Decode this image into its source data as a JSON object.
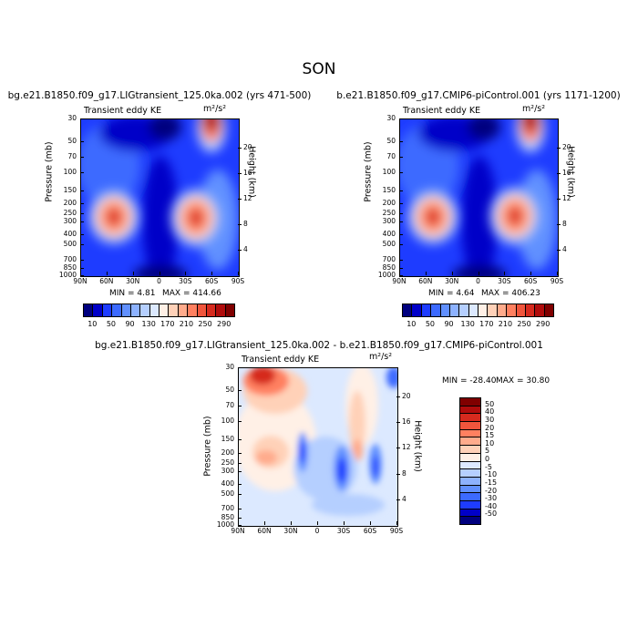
{
  "season": "SON",
  "panels": [
    {
      "title": "bg.e21.B1850.f09_g17.LIGtransient_125.0ka.002 (yrs 471-500)",
      "subtitle": "Transient eddy KE",
      "units": "m²/s²",
      "ylabel": "Pressure (mb)",
      "ylabel_right": "Height (km)",
      "min_label": "MIN =   4.81",
      "max_label": "MAX = 414.66"
    },
    {
      "title": "b.e21.B1850.f09_g17.CMIP6-piControl.001 (yrs 1171-1200)",
      "subtitle": "Transient eddy KE",
      "units": "m²/s²",
      "ylabel": "Pressure (mb)",
      "ylabel_right": "Height (km)",
      "min_label": "MIN =   4.64",
      "max_label": "MAX = 406.23"
    },
    {
      "title": "bg.e21.B1850.f09_g17.LIGtransient_125.0ka.002 - b.e21.B1850.f09_g17.CMIP6-piControl.001",
      "subtitle": "Transient eddy KE",
      "units": "m²/s²",
      "ylabel": "Pressure (mb)",
      "ylabel_right": "Height (km)",
      "min_label": "MIN = -28.40",
      "max_label": "MAX =  30.80"
    }
  ],
  "chart_data": [
    {
      "type": "heatmap",
      "title": "bg.e21.B1850.f09_g17.LIGtransient_125.0ka.002 (yrs 471-500)",
      "x_ticks": [
        "90N",
        "60N",
        "30N",
        "0",
        "30S",
        "60S",
        "90S"
      ],
      "x_values": [
        90,
        60,
        30,
        0,
        -30,
        -60,
        -90
      ],
      "y_ticks": [
        "30",
        "50",
        "70",
        "100",
        "150",
        "200",
        "250",
        "300",
        "400",
        "500",
        "700",
        "850",
        "1000"
      ],
      "y_values": [
        30,
        50,
        70,
        100,
        150,
        200,
        250,
        300,
        400,
        500,
        700,
        850,
        1000
      ],
      "yscale": "log",
      "ylim": [
        1000,
        30
      ],
      "height_ticks": [
        "4",
        "8",
        "12",
        "16",
        "20"
      ],
      "height_values": [
        4,
        8,
        12,
        16,
        20
      ],
      "colorbar_levels": [
        "10",
        "50",
        "90",
        "130",
        "170",
        "210",
        "250",
        "290"
      ],
      "colorbar_colors": [
        "#00007f",
        "#0000c8",
        "#1e3cff",
        "#3c6aff",
        "#6190ff",
        "#8db2ff",
        "#b5cfff",
        "#dce9ff",
        "#fff0e6",
        "#ffd1b8",
        "#ffab8c",
        "#ff8060",
        "#f0553c",
        "#d62a1e",
        "#b00c0c",
        "#800000"
      ],
      "min": 4.81,
      "max": 414.66,
      "features": [
        {
          "name": "NH jet maximum",
          "lat": 45,
          "p": 270,
          "value": 290
        },
        {
          "name": "SH jet maximum",
          "lat": -48,
          "p": 280,
          "value": 280
        },
        {
          "name": "SH stratospheric maximum",
          "lat": -62,
          "p": 30,
          "value": 414.66
        }
      ]
    },
    {
      "type": "heatmap",
      "title": "b.e21.B1850.f09_g17.CMIP6-piControl.001 (yrs 1171-1200)",
      "x_ticks": [
        "90N",
        "60N",
        "30N",
        "0",
        "30S",
        "60S",
        "90S"
      ],
      "x_values": [
        90,
        60,
        30,
        0,
        -30,
        -60,
        -90
      ],
      "y_ticks": [
        "30",
        "50",
        "70",
        "100",
        "150",
        "200",
        "250",
        "300",
        "400",
        "500",
        "700",
        "850",
        "1000"
      ],
      "y_values": [
        30,
        50,
        70,
        100,
        150,
        200,
        250,
        300,
        400,
        500,
        700,
        850,
        1000
      ],
      "yscale": "log",
      "ylim": [
        1000,
        30
      ],
      "height_ticks": [
        "4",
        "8",
        "12",
        "16",
        "20"
      ],
      "height_values": [
        4,
        8,
        12,
        16,
        20
      ],
      "colorbar_levels": [
        "10",
        "50",
        "90",
        "130",
        "170",
        "210",
        "250",
        "290"
      ],
      "colorbar_colors": [
        "#00007f",
        "#0000c8",
        "#1e3cff",
        "#3c6aff",
        "#6190ff",
        "#8db2ff",
        "#b5cfff",
        "#dce9ff",
        "#fff0e6",
        "#ffd1b8",
        "#ffab8c",
        "#ff8060",
        "#f0553c",
        "#d62a1e",
        "#b00c0c",
        "#800000"
      ],
      "min": 4.64,
      "max": 406.23,
      "features": [
        {
          "name": "NH jet maximum",
          "lat": 45,
          "p": 270,
          "value": 285
        },
        {
          "name": "SH jet maximum",
          "lat": -48,
          "p": 280,
          "value": 275
        },
        {
          "name": "SH stratospheric maximum",
          "lat": -62,
          "p": 30,
          "value": 406.23
        }
      ]
    },
    {
      "type": "heatmap",
      "title": "bg.e21.B1850.f09_g17.LIGtransient_125.0ka.002 - b.e21.B1850.f09_g17.CMIP6-piControl.001",
      "x_ticks": [
        "90N",
        "60N",
        "30N",
        "0",
        "30S",
        "60S",
        "90S"
      ],
      "x_values": [
        90,
        60,
        30,
        0,
        -30,
        -60,
        -90
      ],
      "y_ticks": [
        "30",
        "50",
        "70",
        "100",
        "150",
        "200",
        "250",
        "300",
        "400",
        "500",
        "700",
        "850",
        "1000"
      ],
      "y_values": [
        30,
        50,
        70,
        100,
        150,
        200,
        250,
        300,
        400,
        500,
        700,
        850,
        1000
      ],
      "yscale": "log",
      "ylim": [
        1000,
        30
      ],
      "height_ticks": [
        "4",
        "8",
        "12",
        "16",
        "20"
      ],
      "height_values": [
        4,
        8,
        12,
        16,
        20
      ],
      "colorbar_levels": [
        "50",
        "40",
        "30",
        "20",
        "15",
        "10",
        "5",
        "0",
        "-5",
        "-10",
        "-15",
        "-20",
        "-30",
        "-40",
        "-50"
      ],
      "colorbar_colors": [
        "#800000",
        "#b00c0c",
        "#d62a1e",
        "#f0553c",
        "#ff8060",
        "#ffab8c",
        "#ffd1b8",
        "#fff0e6",
        "#dce9ff",
        "#b5cfff",
        "#8db2ff",
        "#6190ff",
        "#3c6aff",
        "#1e3cff",
        "#0000c8",
        "#00007f"
      ],
      "min": -28.4,
      "max": 30.8,
      "features": [
        {
          "name": "NH polar stratosphere increase",
          "lat": 70,
          "p": 35,
          "value": 30.8
        },
        {
          "name": "SH upper-tropospheric decrease",
          "lat": -30,
          "p": 250,
          "value": -28.4
        }
      ]
    }
  ]
}
